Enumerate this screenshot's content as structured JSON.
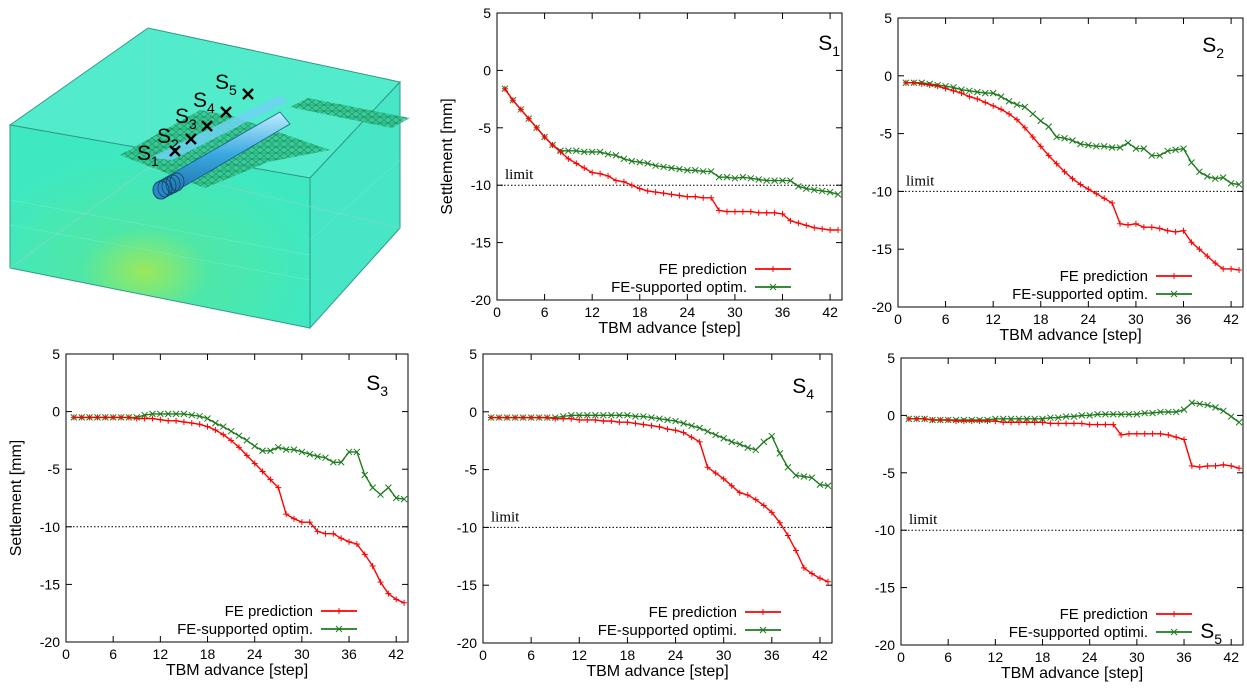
{
  "model": {
    "point_labels": [
      {
        "base": "S",
        "sub": "1"
      },
      {
        "base": "S",
        "sub": "2"
      },
      {
        "base": "S",
        "sub": "3"
      },
      {
        "base": "S",
        "sub": "4"
      },
      {
        "base": "S",
        "sub": "5"
      }
    ],
    "colors": {
      "soil": "#40e8c0",
      "tunnel": "#50c8f0",
      "mesh": "#38a878"
    }
  },
  "chart_data": [
    {
      "type": "line",
      "panel_label": {
        "base": "S",
        "sub": "1"
      },
      "xlabel": "TBM advance [step]",
      "ylabel": "Settlement [mm]",
      "xlim": [
        0,
        43.5
      ],
      "ylim": [
        -20,
        5
      ],
      "xticks": [
        0,
        6,
        12,
        18,
        24,
        30,
        36,
        42
      ],
      "yticks": [
        -20,
        -15,
        -10,
        -5,
        0,
        5
      ],
      "limit": {
        "y": -10,
        "label": "limit"
      },
      "legend": {
        "position": "bottom-center"
      },
      "series": [
        {
          "name": "FE prediction",
          "color": "#ff0000",
          "marker": "plus",
          "x": [
            1,
            2,
            3,
            4,
            5,
            6,
            7,
            8,
            9,
            10,
            11,
            12,
            13,
            14,
            15,
            16,
            17,
            18,
            19,
            20,
            21,
            22,
            23,
            24,
            25,
            26,
            27,
            28,
            29,
            30,
            31,
            32,
            33,
            34,
            35,
            36,
            37,
            38,
            39,
            40,
            41,
            42,
            43
          ],
          "y": [
            -1.6,
            -2.6,
            -3.4,
            -4.2,
            -5.0,
            -5.8,
            -6.5,
            -7.1,
            -7.7,
            -8.1,
            -8.5,
            -8.9,
            -9.0,
            -9.2,
            -9.6,
            -9.7,
            -10.0,
            -10.3,
            -10.5,
            -10.6,
            -10.7,
            -10.8,
            -10.9,
            -11.0,
            -11.0,
            -11.1,
            -11.1,
            -12.2,
            -12.3,
            -12.3,
            -12.3,
            -12.3,
            -12.4,
            -12.4,
            -12.4,
            -12.5,
            -13.1,
            -13.3,
            -13.5,
            -13.7,
            -13.8,
            -13.9,
            -13.9
          ]
        },
        {
          "name": "FE-supported optim.",
          "color": "#1e7b1e",
          "marker": "x",
          "x": [
            1,
            2,
            3,
            4,
            5,
            6,
            7,
            8,
            9,
            10,
            11,
            12,
            13,
            14,
            15,
            16,
            17,
            18,
            19,
            20,
            21,
            22,
            23,
            24,
            25,
            26,
            27,
            28,
            29,
            30,
            31,
            32,
            33,
            34,
            35,
            36,
            37,
            38,
            39,
            40,
            41,
            42,
            43
          ],
          "y": [
            -1.6,
            -2.6,
            -3.4,
            -4.2,
            -5.0,
            -5.8,
            -6.5,
            -7.0,
            -7.0,
            -7.0,
            -7.1,
            -7.1,
            -7.1,
            -7.3,
            -7.4,
            -7.7,
            -7.9,
            -8.0,
            -8.1,
            -8.3,
            -8.4,
            -8.5,
            -8.6,
            -8.7,
            -8.7,
            -8.8,
            -8.8,
            -9.3,
            -9.3,
            -9.4,
            -9.3,
            -9.4,
            -9.5,
            -9.6,
            -9.6,
            -9.6,
            -9.6,
            -10.1,
            -10.3,
            -10.4,
            -10.5,
            -10.6,
            -10.8
          ]
        }
      ]
    },
    {
      "type": "line",
      "panel_label": {
        "base": "S",
        "sub": "2"
      },
      "xlabel": "TBM advance [step]",
      "ylabel": "",
      "xlim": [
        0,
        43.5
      ],
      "ylim": [
        -20,
        5
      ],
      "xticks": [
        0,
        6,
        12,
        18,
        24,
        30,
        36,
        42
      ],
      "yticks": [
        -20,
        -15,
        -10,
        -5,
        0,
        5
      ],
      "limit": {
        "y": -10,
        "label": "limit"
      },
      "legend": {
        "position": "bottom-center"
      },
      "series": [
        {
          "name": "FE prediction",
          "color": "#ff0000",
          "marker": "plus",
          "x": [
            1,
            2,
            3,
            4,
            5,
            6,
            7,
            8,
            9,
            10,
            11,
            12,
            13,
            14,
            15,
            16,
            17,
            18,
            19,
            20,
            21,
            22,
            23,
            24,
            25,
            26,
            27,
            28,
            29,
            30,
            31,
            32,
            33,
            34,
            35,
            36,
            37,
            38,
            39,
            40,
            41,
            42,
            43
          ],
          "y": [
            -0.6,
            -0.6,
            -0.7,
            -0.8,
            -0.9,
            -1.1,
            -1.3,
            -1.5,
            -1.8,
            -2.0,
            -2.3,
            -2.6,
            -2.9,
            -3.3,
            -3.8,
            -4.5,
            -5.3,
            -6.1,
            -6.9,
            -7.6,
            -8.3,
            -8.9,
            -9.4,
            -9.8,
            -10.2,
            -10.6,
            -11.0,
            -12.8,
            -12.9,
            -12.8,
            -13.1,
            -13.1,
            -13.2,
            -13.4,
            -13.5,
            -13.4,
            -14.4,
            -15.0,
            -15.6,
            -16.2,
            -16.7,
            -16.7,
            -16.8
          ]
        },
        {
          "name": "FE-supported optim.",
          "color": "#1e7b1e",
          "marker": "x",
          "x": [
            1,
            2,
            3,
            4,
            5,
            6,
            7,
            8,
            9,
            10,
            11,
            12,
            13,
            14,
            15,
            16,
            17,
            18,
            19,
            20,
            21,
            22,
            23,
            24,
            25,
            26,
            27,
            28,
            29,
            30,
            31,
            32,
            33,
            34,
            35,
            36,
            37,
            38,
            39,
            40,
            41,
            42,
            43
          ],
          "y": [
            -0.6,
            -0.6,
            -0.6,
            -0.7,
            -0.8,
            -0.9,
            -1.0,
            -1.2,
            -1.3,
            -1.4,
            -1.5,
            -1.5,
            -1.8,
            -2.2,
            -2.5,
            -2.7,
            -3.3,
            -3.9,
            -4.4,
            -5.3,
            -5.4,
            -5.6,
            -5.9,
            -6.0,
            -6.1,
            -6.1,
            -6.2,
            -6.2,
            -5.8,
            -6.3,
            -6.3,
            -6.9,
            -6.9,
            -6.5,
            -6.4,
            -6.3,
            -7.5,
            -8.3,
            -8.7,
            -8.9,
            -8.8,
            -9.3,
            -9.4
          ]
        }
      ]
    },
    {
      "type": "line",
      "panel_label": {
        "base": "S",
        "sub": "3"
      },
      "xlabel": "TBM advance [step]",
      "ylabel": "Settlement [mm]",
      "xlim": [
        0,
        43.5
      ],
      "ylim": [
        -20,
        5
      ],
      "xticks": [
        0,
        6,
        12,
        18,
        24,
        30,
        36,
        42
      ],
      "yticks": [
        -20,
        -15,
        -10,
        -5,
        0,
        5
      ],
      "limit": {
        "y": -10,
        "label": ""
      },
      "legend": {
        "position": "bottom-center"
      },
      "series": [
        {
          "name": "FE prediction",
          "color": "#ff0000",
          "marker": "plus",
          "x": [
            1,
            2,
            3,
            4,
            5,
            6,
            7,
            8,
            9,
            10,
            11,
            12,
            13,
            14,
            15,
            16,
            17,
            18,
            19,
            20,
            21,
            22,
            23,
            24,
            25,
            26,
            27,
            28,
            29,
            30,
            31,
            32,
            33,
            34,
            35,
            36,
            37,
            38,
            39,
            40,
            41,
            42,
            43
          ],
          "y": [
            -0.5,
            -0.5,
            -0.5,
            -0.5,
            -0.5,
            -0.5,
            -0.5,
            -0.5,
            -0.6,
            -0.6,
            -0.6,
            -0.7,
            -0.8,
            -0.8,
            -0.9,
            -1.0,
            -1.1,
            -1.3,
            -1.6,
            -2.0,
            -2.5,
            -3.1,
            -3.8,
            -4.5,
            -5.2,
            -5.9,
            -6.6,
            -8.9,
            -9.3,
            -9.6,
            -9.6,
            -10.4,
            -10.6,
            -10.6,
            -11.0,
            -11.3,
            -11.5,
            -12.4,
            -13.4,
            -14.8,
            -15.8,
            -16.3,
            -16.6
          ]
        },
        {
          "name": "FE-supported optim.",
          "color": "#1e7b1e",
          "marker": "x",
          "x": [
            1,
            2,
            3,
            4,
            5,
            6,
            7,
            8,
            9,
            10,
            11,
            12,
            13,
            14,
            15,
            16,
            17,
            18,
            19,
            20,
            21,
            22,
            23,
            24,
            25,
            26,
            27,
            28,
            29,
            30,
            31,
            32,
            33,
            34,
            35,
            36,
            37,
            38,
            39,
            40,
            41,
            42,
            43
          ],
          "y": [
            -0.5,
            -0.5,
            -0.5,
            -0.5,
            -0.5,
            -0.5,
            -0.5,
            -0.5,
            -0.5,
            -0.3,
            -0.2,
            -0.2,
            -0.2,
            -0.2,
            -0.2,
            -0.3,
            -0.4,
            -0.6,
            -1.0,
            -1.3,
            -1.7,
            -2.1,
            -2.5,
            -3.0,
            -3.4,
            -3.4,
            -3.1,
            -3.3,
            -3.3,
            -3.5,
            -3.7,
            -3.9,
            -4.0,
            -4.4,
            -4.4,
            -3.5,
            -3.5,
            -5.5,
            -6.6,
            -7.2,
            -6.6,
            -7.5,
            -7.6
          ]
        }
      ]
    },
    {
      "type": "line",
      "panel_label": {
        "base": "S",
        "sub": "4"
      },
      "xlabel": "TBM advance [step]",
      "ylabel": "",
      "xlim": [
        0,
        43.5
      ],
      "ylim": [
        -20,
        5
      ],
      "xticks": [
        0,
        6,
        12,
        18,
        24,
        30,
        36,
        42
      ],
      "yticks": [
        -20,
        -15,
        -10,
        -5,
        0,
        5
      ],
      "limit": {
        "y": -10,
        "label": "limit"
      },
      "legend": {
        "position": "bottom-center"
      },
      "series": [
        {
          "name": "FE prediction",
          "color": "#ff0000",
          "marker": "plus",
          "x": [
            1,
            2,
            3,
            4,
            5,
            6,
            7,
            8,
            9,
            10,
            11,
            12,
            13,
            14,
            15,
            16,
            17,
            18,
            19,
            20,
            21,
            22,
            23,
            24,
            25,
            26,
            27,
            28,
            29,
            30,
            31,
            32,
            33,
            34,
            35,
            36,
            37,
            38,
            39,
            40,
            41,
            42,
            43
          ],
          "y": [
            -0.5,
            -0.5,
            -0.5,
            -0.5,
            -0.5,
            -0.5,
            -0.5,
            -0.5,
            -0.6,
            -0.6,
            -0.6,
            -0.7,
            -0.7,
            -0.7,
            -0.8,
            -0.8,
            -0.9,
            -0.9,
            -1.0,
            -1.1,
            -1.2,
            -1.3,
            -1.5,
            -1.6,
            -1.8,
            -2.2,
            -2.6,
            -4.8,
            -5.3,
            -5.8,
            -6.4,
            -7.0,
            -7.2,
            -7.6,
            -8.1,
            -8.7,
            -9.6,
            -10.7,
            -12.0,
            -13.5,
            -14.0,
            -14.4,
            -14.7
          ]
        },
        {
          "name": "FE-supported optimi.",
          "color": "#1e7b1e",
          "marker": "x",
          "x": [
            1,
            2,
            3,
            4,
            5,
            6,
            7,
            8,
            9,
            10,
            11,
            12,
            13,
            14,
            15,
            16,
            17,
            18,
            19,
            20,
            21,
            22,
            23,
            24,
            25,
            26,
            27,
            28,
            29,
            30,
            31,
            32,
            33,
            34,
            35,
            36,
            37,
            38,
            39,
            40,
            41,
            42,
            43
          ],
          "y": [
            -0.5,
            -0.5,
            -0.5,
            -0.5,
            -0.5,
            -0.5,
            -0.5,
            -0.5,
            -0.5,
            -0.4,
            -0.3,
            -0.3,
            -0.3,
            -0.3,
            -0.3,
            -0.3,
            -0.3,
            -0.3,
            -0.4,
            -0.4,
            -0.5,
            -0.6,
            -0.7,
            -0.8,
            -1.0,
            -1.2,
            -1.4,
            -1.7,
            -2.0,
            -2.3,
            -2.6,
            -2.8,
            -3.1,
            -3.3,
            -2.6,
            -2.1,
            -3.6,
            -4.8,
            -5.5,
            -5.6,
            -5.7,
            -6.3,
            -6.4
          ]
        }
      ]
    },
    {
      "type": "line",
      "panel_label": {
        "base": "S",
        "sub": "5"
      },
      "xlabel": "TBM advance [step]",
      "ylabel": "",
      "xlim": [
        0,
        43.5
      ],
      "ylim": [
        -20,
        5
      ],
      "xticks": [
        0,
        6,
        12,
        18,
        24,
        30,
        36,
        42
      ],
      "yticks": [
        -20,
        -15,
        -10,
        -5,
        0,
        5
      ],
      "limit": {
        "y": -10,
        "label": "limit"
      },
      "legend": {
        "position": "bottom-center"
      },
      "series": [
        {
          "name": "FE prediction",
          "color": "#ff0000",
          "marker": "plus",
          "x": [
            1,
            2,
            3,
            4,
            5,
            6,
            7,
            8,
            9,
            10,
            11,
            12,
            13,
            14,
            15,
            16,
            17,
            18,
            19,
            20,
            21,
            22,
            23,
            24,
            25,
            26,
            27,
            28,
            29,
            30,
            31,
            32,
            33,
            34,
            35,
            36,
            37,
            38,
            39,
            40,
            41,
            42,
            43
          ],
          "y": [
            -0.3,
            -0.3,
            -0.3,
            -0.4,
            -0.4,
            -0.4,
            -0.5,
            -0.5,
            -0.5,
            -0.5,
            -0.5,
            -0.5,
            -0.6,
            -0.6,
            -0.6,
            -0.6,
            -0.6,
            -0.6,
            -0.7,
            -0.7,
            -0.7,
            -0.7,
            -0.7,
            -0.8,
            -0.8,
            -0.8,
            -0.8,
            -1.7,
            -1.6,
            -1.6,
            -1.6,
            -1.6,
            -1.6,
            -1.7,
            -1.9,
            -2.1,
            -4.4,
            -4.5,
            -4.4,
            -4.4,
            -4.3,
            -4.4,
            -4.6
          ]
        },
        {
          "name": "FE-supported optimi.",
          "color": "#1e7b1e",
          "marker": "x",
          "x": [
            1,
            2,
            3,
            4,
            5,
            6,
            7,
            8,
            9,
            10,
            11,
            12,
            13,
            14,
            15,
            16,
            17,
            18,
            19,
            20,
            21,
            22,
            23,
            24,
            25,
            26,
            27,
            28,
            29,
            30,
            31,
            32,
            33,
            34,
            35,
            36,
            37,
            38,
            39,
            40,
            41,
            42,
            43
          ],
          "y": [
            -0.3,
            -0.3,
            -0.3,
            -0.4,
            -0.4,
            -0.4,
            -0.4,
            -0.4,
            -0.4,
            -0.4,
            -0.4,
            -0.3,
            -0.3,
            -0.3,
            -0.3,
            -0.3,
            -0.3,
            -0.3,
            -0.2,
            -0.2,
            -0.1,
            -0.1,
            0.0,
            0.0,
            0.1,
            0.1,
            0.1,
            0.1,
            0.1,
            0.1,
            0.2,
            0.2,
            0.3,
            0.3,
            0.3,
            0.5,
            1.1,
            1.0,
            0.9,
            0.7,
            0.4,
            -0.1,
            -0.6
          ]
        }
      ]
    }
  ]
}
